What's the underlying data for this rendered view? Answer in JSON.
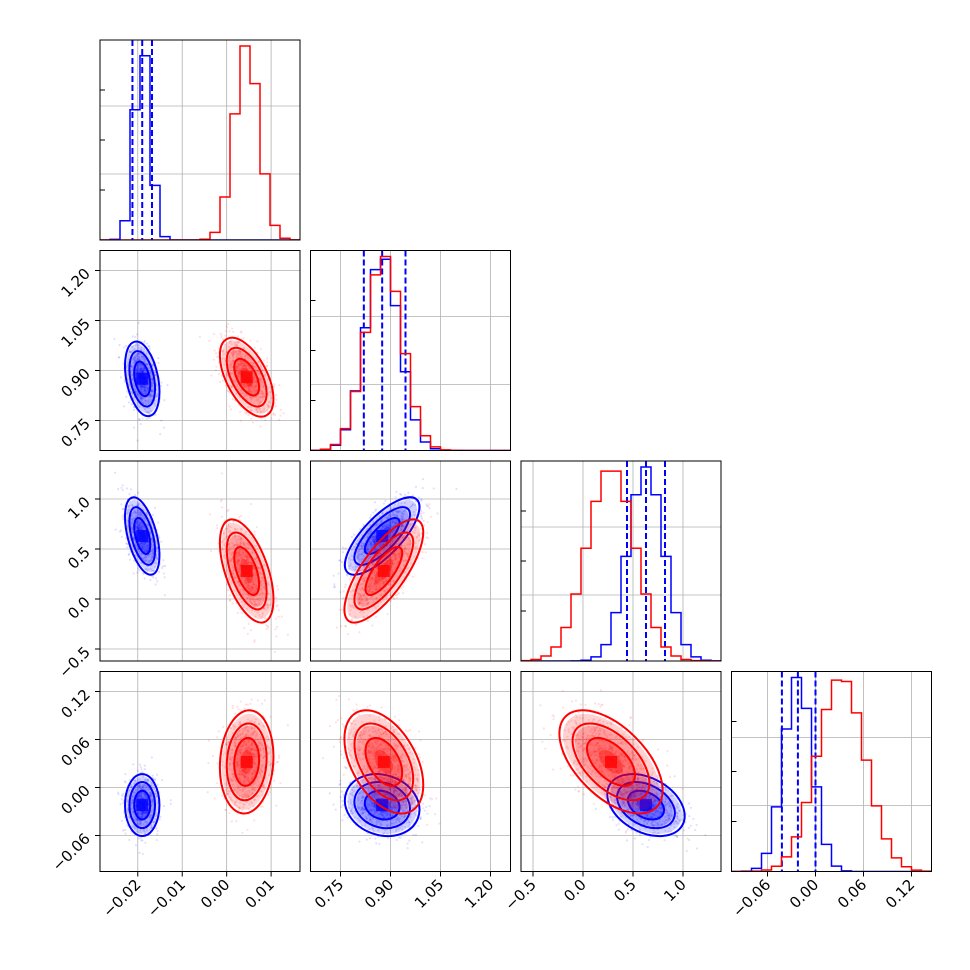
{
  "colors": {
    "series_a": "#0000ff",
    "series_b": "#ff0000",
    "grid": "#b0b0b0",
    "frame": "#000000"
  },
  "chart_data": {
    "type": "corner",
    "description_note": "",
    "parameters": [
      {
        "axis_range": [
          -0.0285,
          0.0165
        ],
        "ticks": [
          {
            "v": -0.02,
            "label": "−0.02"
          },
          {
            "v": -0.01,
            "label": "−0.01"
          },
          {
            "v": 0.0,
            "label": "0.00"
          },
          {
            "v": 0.01,
            "label": "0.01"
          }
        ]
      },
      {
        "axis_range": [
          0.66,
          1.26
        ],
        "ticks": [
          {
            "v": 0.75,
            "label": "0.75"
          },
          {
            "v": 0.9,
            "label": "0.90"
          },
          {
            "v": 1.05,
            "label": "1.05"
          },
          {
            "v": 1.2,
            "label": "1.20"
          }
        ]
      },
      {
        "axis_range": [
          -0.62,
          1.38
        ],
        "ticks": [
          {
            "v": -0.5,
            "label": "−0.5"
          },
          {
            "v": 0.0,
            "label": "0.0"
          },
          {
            "v": 0.5,
            "label": "0.5"
          },
          {
            "v": 1.0,
            "label": "1.0"
          }
        ]
      },
      {
        "axis_range": [
          -0.105,
          0.145
        ],
        "ticks": [
          {
            "v": -0.06,
            "label": "−0.06"
          },
          {
            "v": 0.0,
            "label": "0.00"
          },
          {
            "v": 0.06,
            "label": "0.06"
          },
          {
            "v": 0.12,
            "label": "0.12"
          }
        ]
      }
    ],
    "series": [
      {
        "color_key": "series_a",
        "mean": [
          -0.019,
          0.875,
          0.63,
          -0.022
        ],
        "std": [
          0.0018,
          0.052,
          0.18,
          0.018
        ],
        "corr": [
          [
            1,
            -0.35,
            -0.5,
            0.0
          ],
          [
            -0.35,
            1,
            0.75,
            -0.15
          ],
          [
            -0.5,
            0.75,
            1,
            -0.35
          ],
          [
            0.0,
            -0.15,
            -0.35,
            1
          ]
        ],
        "quantiles": [
          [
            -0.0212,
            -0.019,
            -0.0168
          ],
          [
            0.82,
            0.875,
            0.945
          ],
          [
            0.44,
            0.63,
            0.82
          ],
          [
            -0.042,
            -0.022,
            0.0
          ]
        ]
      },
      {
        "color_key": "series_b",
        "mean": [
          0.0045,
          0.88,
          0.28,
          0.032
        ],
        "std": [
          0.0028,
          0.055,
          0.24,
          0.03
        ],
        "corr": [
          [
            1,
            -0.55,
            -0.55,
            0.1
          ],
          [
            -0.55,
            1,
            0.75,
            -0.45
          ],
          [
            -0.55,
            0.75,
            1,
            -0.55
          ],
          [
            0.1,
            -0.45,
            -0.55,
            1
          ]
        ]
      }
    ],
    "grid": true,
    "legend": "none"
  }
}
